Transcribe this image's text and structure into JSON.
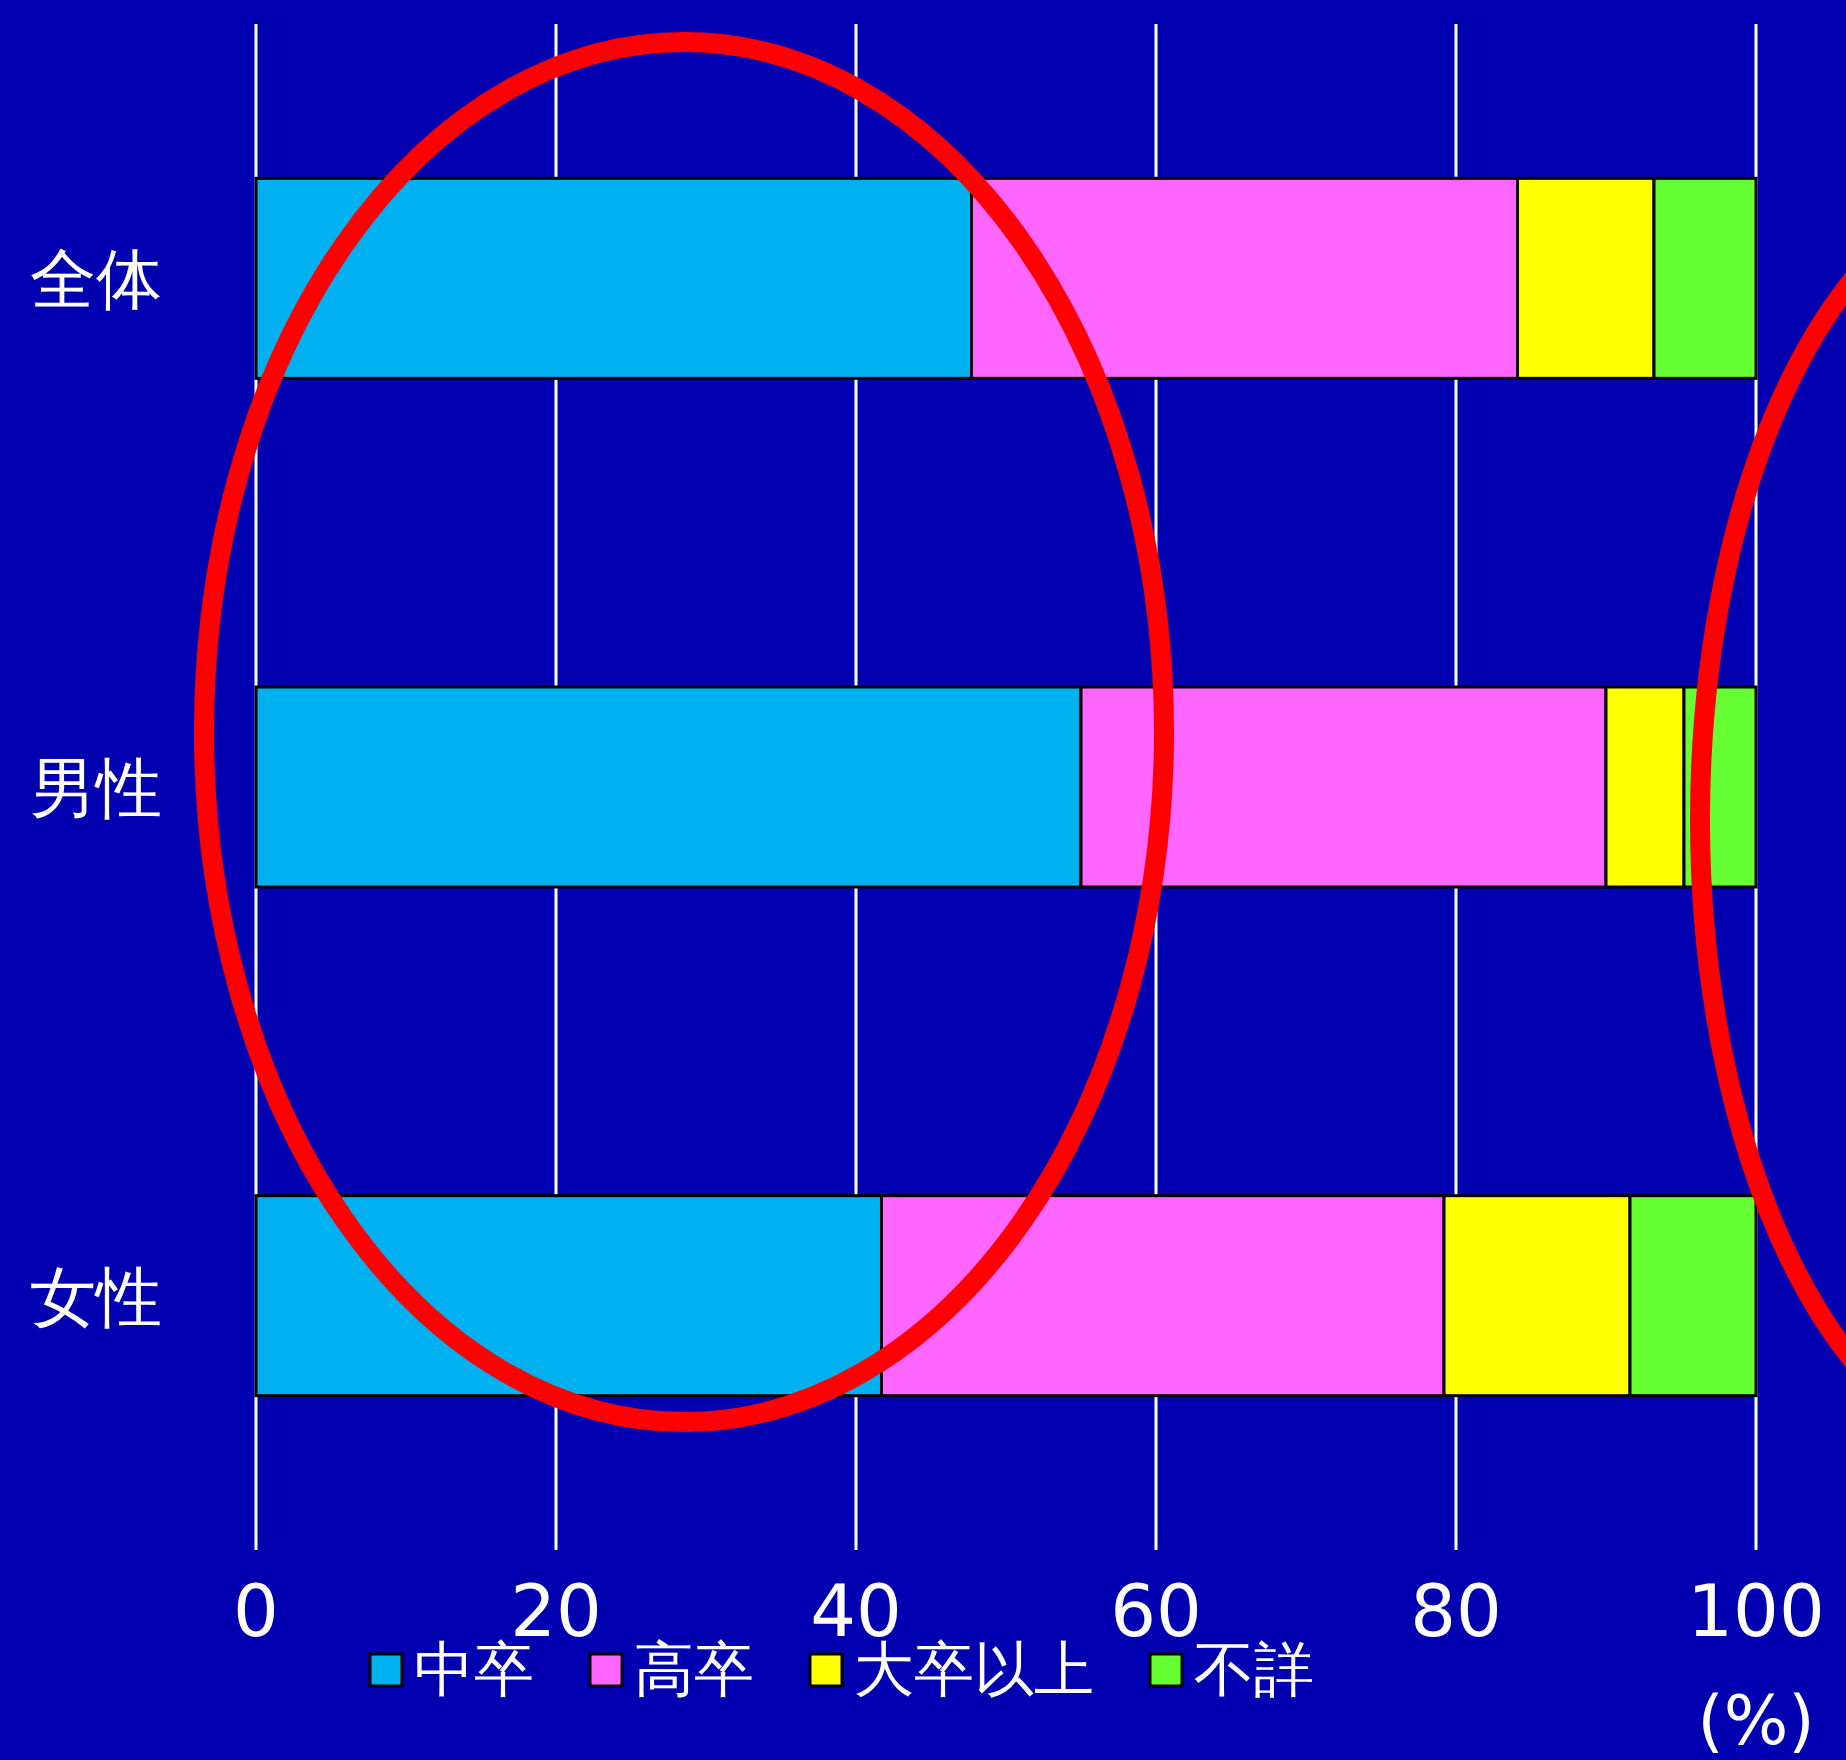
{
  "chart_data": {
    "type": "bar",
    "orientation": "horizontal",
    "stacked": true,
    "xlabel": "(%)",
    "categories": [
      "全体",
      "男性",
      "女性"
    ],
    "series": [
      {
        "name": "中卒",
        "color": "#00b0f0",
        "values": [
          47.7,
          55.0,
          41.7
        ]
      },
      {
        "name": "高卒",
        "color": "#ff66ff",
        "values": [
          36.4,
          35.0,
          37.5
        ]
      },
      {
        "name": "大卒以上",
        "color": "#ffff00",
        "values": [
          9.1,
          5.2,
          12.4
        ]
      },
      {
        "name": "不詳",
        "color": "#66ff33",
        "values": [
          6.8,
          4.8,
          8.4
        ]
      }
    ],
    "xlim": [
      0,
      100
    ],
    "xticks": [
      0,
      20,
      40,
      60,
      80,
      100
    ],
    "grid": "x",
    "legend": "bottom"
  }
}
